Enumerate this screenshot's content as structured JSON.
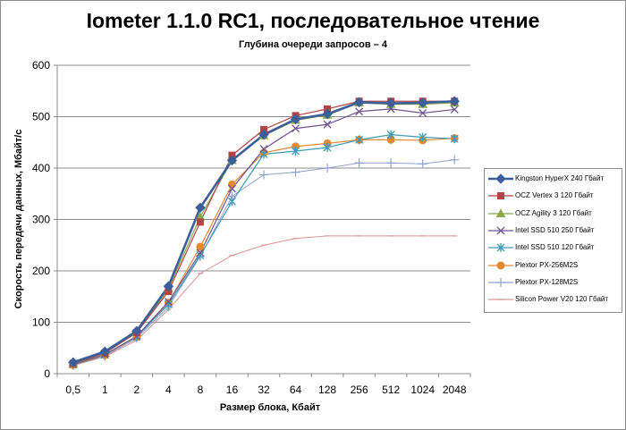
{
  "chart_data": {
    "type": "line",
    "title": "Iometer 1.1.0 RC1, последовательное чтение",
    "subtitle": "Глубина очереди запросов – 4",
    "xlabel": "Размер блока, Кбайт",
    "ylabel": "Скорость передачи данных, Мбайт/с",
    "categories": [
      "0,5",
      "1",
      "2",
      "4",
      "8",
      "16",
      "32",
      "64",
      "128",
      "256",
      "512",
      "1024",
      "2048"
    ],
    "ylim": [
      0,
      600
    ],
    "yticks": [
      0,
      100,
      200,
      300,
      400,
      500,
      600
    ],
    "grid": "horizontal",
    "legend_position": "right",
    "series": [
      {
        "name": "Kingston HyperX  240 Гбайт",
        "color": "#3a5f9a",
        "marker": "diamond",
        "values": [
          22,
          43,
          83,
          170,
          323,
          415,
          465,
          495,
          505,
          528,
          526,
          527,
          530
        ]
      },
      {
        "name": "OCZ Vertex  3 120 Гбайт",
        "color": "#b04543",
        "marker": "square",
        "values": [
          20,
          40,
          80,
          160,
          295,
          425,
          475,
          502,
          515,
          530,
          530,
          530,
          530
        ]
      },
      {
        "name": "OCZ Agility  3 120 Гбайт",
        "color": "#8aa84a",
        "marker": "triangle",
        "values": [
          19,
          40,
          80,
          165,
          305,
          415,
          463,
          493,
          503,
          527,
          524,
          524,
          527
        ]
      },
      {
        "name": "Intel  SSD 510 250 Гбайт",
        "color": "#6f5490",
        "marker": "x",
        "values": [
          18,
          37,
          73,
          140,
          235,
          360,
          437,
          477,
          485,
          510,
          515,
          507,
          514
        ]
      },
      {
        "name": "Intel  SSD 510 120 Гбайт",
        "color": "#3f9bb6",
        "marker": "star",
        "values": [
          18,
          37,
          72,
          135,
          230,
          335,
          427,
          433,
          440,
          455,
          465,
          460,
          457
        ]
      },
      {
        "name": "Plextor  PX-256M2S",
        "color": "#e58a33",
        "marker": "circle",
        "values": [
          17,
          36,
          72,
          138,
          247,
          368,
          430,
          442,
          448,
          455,
          455,
          454,
          458
        ]
      },
      {
        "name": "Plextor  PX-128M2S",
        "color": "#8ea4ce",
        "marker": "plus",
        "values": [
          16,
          34,
          69,
          130,
          228,
          345,
          387,
          392,
          400,
          410,
          410,
          408,
          416
        ]
      },
      {
        "name": "Silicon  Power  V20 120 Гбайт",
        "color": "#d99694",
        "marker": "dash",
        "values": [
          16,
          33,
          65,
          125,
          195,
          230,
          250,
          263,
          268,
          268,
          268,
          268,
          268
        ]
      }
    ]
  }
}
